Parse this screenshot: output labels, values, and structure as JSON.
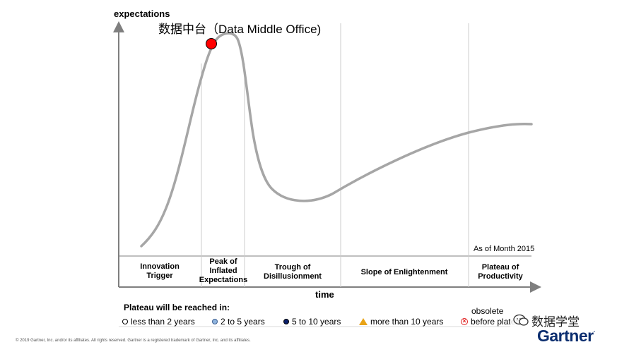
{
  "diagram": {
    "y_axis_label": "expectations",
    "x_axis_label": "time",
    "marker_label": "数据中台（Data Middle Office)",
    "as_of": "As of Month 2015",
    "phases": [
      "Innovation\nTrigger",
      "Peak of\nInflated\nExpectations",
      "Trough of\nDisillusionment",
      "Slope of Enlightenment",
      "Plateau of\nProductivity"
    ]
  },
  "legend": {
    "title": "Plateau will be reached in:",
    "items": [
      {
        "label": "less than 2 years",
        "icon": "hollow-circle-icon"
      },
      {
        "label": "2 to 5 years",
        "icon": "light-blue-circle-icon"
      },
      {
        "label": "5 to 10 years",
        "icon": "dark-blue-circle-icon"
      },
      {
        "label": "more than 10 years",
        "icon": "orange-triangle-icon"
      },
      {
        "label": "before plateau",
        "prefix": "obsolete",
        "icon": "red-x-circle-icon"
      }
    ]
  },
  "footer": {
    "copyright": "© 2019 Gartner, Inc. and/or its affiliates. All rights reserved. Gartner is a registered trademark of Gartner, Inc. and its affiliates.",
    "brand": "Gartner",
    "watermark": "数据学堂"
  },
  "colors": {
    "curve": "#a6a6a6",
    "marker": "#ff0000",
    "axis": "#7f7f7f",
    "brand": "#0b2e6f"
  }
}
